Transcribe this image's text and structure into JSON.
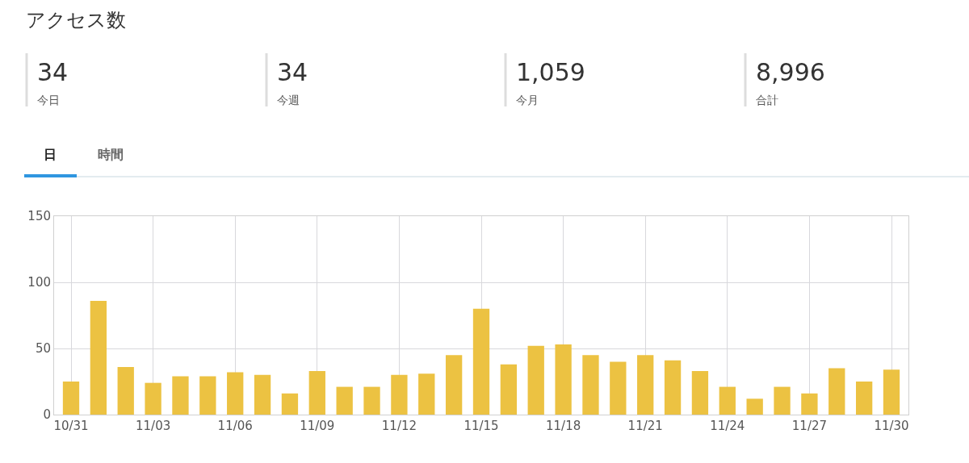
{
  "chart_data": {
    "type": "bar",
    "title": "アクセス数",
    "categories": [
      "10/31",
      null,
      null,
      "11/03",
      null,
      null,
      "11/06",
      null,
      null,
      "11/09",
      null,
      null,
      "11/12",
      null,
      null,
      "11/15",
      null,
      null,
      "11/18",
      null,
      null,
      "11/21",
      null,
      null,
      "11/24",
      null,
      null,
      "11/27",
      null,
      null,
      "11/30"
    ],
    "values": [
      25,
      86,
      36,
      24,
      29,
      29,
      32,
      30,
      16,
      33,
      21,
      21,
      30,
      31,
      45,
      80,
      38,
      52,
      53,
      45,
      40,
      45,
      41,
      33,
      21,
      12,
      21,
      16,
      35,
      25,
      34
    ],
    "color": "#ecc242",
    "ylim": [
      0,
      150
    ],
    "yticks": [
      0,
      50,
      100,
      150
    ],
    "grid": true,
    "annotations": [
      "34",
      "今日",
      "34",
      "今週",
      "1,059",
      "今月",
      "8,996",
      "合計",
      "日",
      "時間"
    ]
  }
}
